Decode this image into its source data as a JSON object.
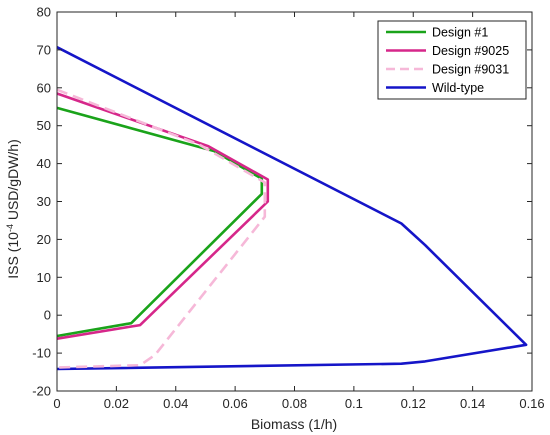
{
  "chart_data": {
    "type": "line",
    "xlabel": "Biomass (1/h)",
    "ylabel": {
      "prefix": "ISS (10",
      "exponent": "-4",
      "suffix": " USD/gDW/h)"
    },
    "xlim": [
      0,
      0.16
    ],
    "ylim": [
      -20,
      80
    ],
    "xticks": [
      "0",
      "0.02",
      "0.04",
      "0.06",
      "0.08",
      "0.1",
      "0.12",
      "0.14",
      "0.16"
    ],
    "yticks": [
      "-20",
      "-10",
      "0",
      "10",
      "20",
      "30",
      "40",
      "50",
      "60",
      "70",
      "80"
    ],
    "grid": false,
    "legend_position": "top-right",
    "series": [
      {
        "name": "Wild-type",
        "color": "#1515c8",
        "style": "solid",
        "points": [
          [
            0,
            70.7
          ],
          [
            0.116,
            24.2
          ],
          [
            0.124,
            18.5
          ],
          [
            0.158,
            -7.8
          ],
          [
            0.124,
            -12.2
          ],
          [
            0.116,
            -12.8
          ],
          [
            0,
            -14.2
          ]
        ]
      },
      {
        "name": "Design #1",
        "color": "#1aa31a",
        "style": "solid",
        "points": [
          [
            0,
            54.7
          ],
          [
            0.053,
            43.3
          ],
          [
            0.069,
            36
          ],
          [
            0.069,
            32
          ],
          [
            0.025,
            -2.1
          ],
          [
            0,
            -5.5
          ]
        ]
      },
      {
        "name": "Design #9025",
        "color": "#d6278a",
        "style": "solid",
        "points": [
          [
            0,
            58.5
          ],
          [
            0.051,
            44.6
          ],
          [
            0.071,
            35.8
          ],
          [
            0.071,
            30
          ],
          [
            0.028,
            -2.6
          ],
          [
            0,
            -6.2
          ]
        ]
      },
      {
        "name": "Design #9031",
        "color": "#f6b8d8",
        "style": "dashed",
        "points": [
          [
            0,
            59.5
          ],
          [
            0.048,
            45
          ],
          [
            0.07,
            35
          ],
          [
            0.07,
            26
          ],
          [
            0.033,
            -10.5
          ],
          [
            0.028,
            -13.2
          ],
          [
            0,
            -13.8
          ]
        ]
      }
    ],
    "legend_order": [
      "Design #1",
      "Design #9025",
      "Design #9031",
      "Wild-type"
    ]
  }
}
